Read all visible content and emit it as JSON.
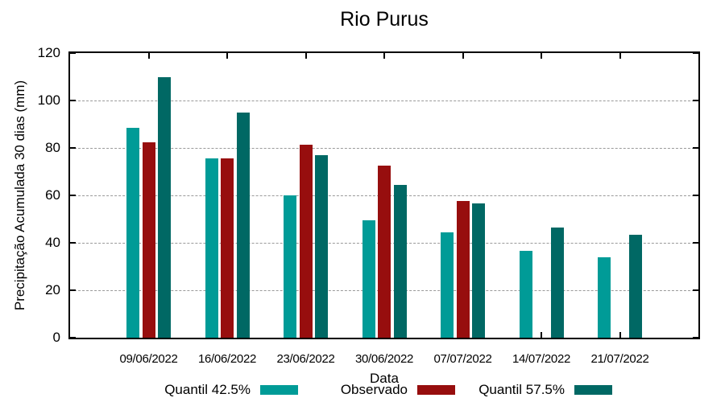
{
  "chart_data": {
    "type": "bar",
    "title": "Rio Purus",
    "xlabel": "Data",
    "ylabel": "Precipitação Acumulada 30 dias (mm)",
    "ylim": [
      0,
      120
    ],
    "ytick_step": 20,
    "grid": "horizontal dashed gridlines at y ticks",
    "legend_position": "bottom",
    "categories": [
      "09/06/2022",
      "16/06/2022",
      "23/06/2022",
      "30/06/2022",
      "07/07/2022",
      "14/07/2022",
      "21/07/2022"
    ],
    "series": [
      {
        "name": "Quantil 42.5%",
        "color": "#009B97",
        "values": [
          88.5,
          75.5,
          60,
          49.5,
          44.5,
          36.5,
          34
        ]
      },
      {
        "name": "Observado",
        "color": "#970E0E",
        "values": [
          82.5,
          75.5,
          81.5,
          72.5,
          57.5,
          null,
          null
        ]
      },
      {
        "name": "Quantil 57.5%",
        "color": "#006864",
        "values": [
          110,
          95,
          77,
          64.5,
          56.5,
          46.5,
          43.5
        ]
      }
    ],
    "colors": {
      "axis_border": "#000000",
      "gridline": "#9a9a9a",
      "background": "#ffffff",
      "text": "#000000"
    }
  }
}
